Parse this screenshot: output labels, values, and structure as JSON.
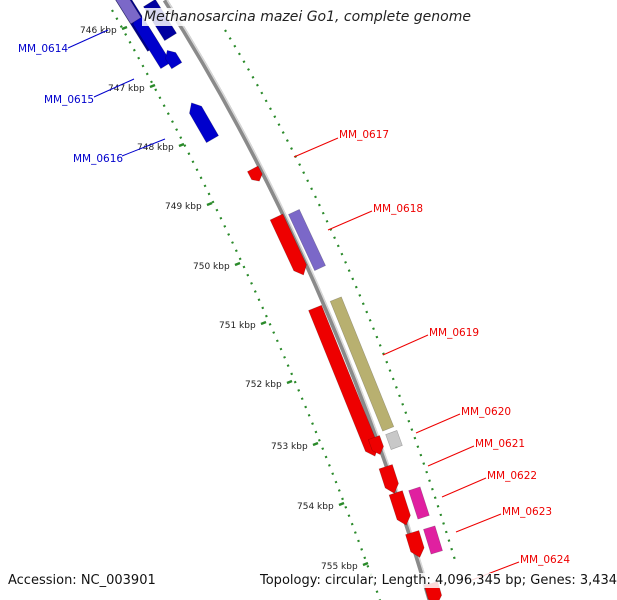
{
  "title": "Methanosarcina mazei Go1, complete genome",
  "accession": "Accession: NC_003901",
  "summary": "Topology: circular; Length: 4,096,345 bp; Genes: 3,434",
  "ticks": [
    {
      "label": "746 kbp"
    },
    {
      "label": "747 kbp"
    },
    {
      "label": "748 kbp"
    },
    {
      "label": "749 kbp"
    },
    {
      "label": "750 kbp"
    },
    {
      "label": "751 kbp"
    },
    {
      "label": "752 kbp"
    },
    {
      "label": "753 kbp"
    },
    {
      "label": "754 kbp"
    },
    {
      "label": "755 kbp"
    }
  ],
  "genes": [
    {
      "label": "MM_0614",
      "strand": "reverse",
      "color": "#0000cc"
    },
    {
      "label": "MM_0615",
      "strand": "reverse",
      "color": "#0000cc"
    },
    {
      "label": "MM_0616",
      "strand": "reverse",
      "color": "#0000cc"
    },
    {
      "label": "MM_0617",
      "strand": "forward",
      "color": "#ee0000"
    },
    {
      "label": "MM_0618",
      "strand": "forward",
      "color": "#ee0000"
    },
    {
      "label": "MM_0619",
      "strand": "forward",
      "color": "#ee0000"
    },
    {
      "label": "MM_0620",
      "strand": "forward",
      "color": "#ee0000"
    },
    {
      "label": "MM_0621",
      "strand": "forward",
      "color": "#ee0000"
    },
    {
      "label": "MM_0622",
      "strand": "forward",
      "color": "#ee0000"
    },
    {
      "label": "MM_0623",
      "strand": "forward",
      "color": "#ee0000"
    },
    {
      "label": "MM_0624",
      "strand": "forward",
      "color": "#ee0000"
    }
  ],
  "colors": {
    "backbone": "#8a8a8a",
    "tick_dots": "#2a8a2a",
    "forward_cds": "#ee0000",
    "reverse_cds": "#0000cc",
    "cog_purple": "#7b68c8",
    "cog_olive": "#b8b070",
    "cog_grey": "#c8c8c8",
    "cog_magenta": "#e020a0"
  }
}
